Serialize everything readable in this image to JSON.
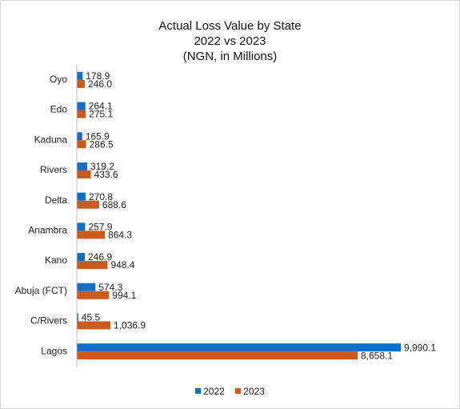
{
  "chart_data": {
    "type": "bar",
    "orientation": "horizontal",
    "title": [
      "Actual Loss Value by State",
      "2022 vs 2023",
      "(NGN, in Millions)"
    ],
    "categories": [
      "Oyo",
      "Edo",
      "Kaduna",
      "Rivers",
      "Delta",
      "Anambra",
      "Kano",
      "Abuja (FCT)",
      "C/Rivers",
      "Lagos"
    ],
    "series": [
      {
        "name": "2022",
        "color": "#0f6fc6",
        "values": [
          178.9,
          264.1,
          165.9,
          319.2,
          270.8,
          257.9,
          246.9,
          574.3,
          45.5,
          9990.1
        ],
        "labels": [
          "178.9",
          "264.1",
          "165.9",
          "319.2",
          "270.8",
          "257.9",
          "246.9",
          "574.3",
          "45.5",
          "9,990.1"
        ]
      },
      {
        "name": "2023",
        "color": "#cc5a1c",
        "values": [
          246.0,
          275.1,
          286.5,
          433.6,
          688.6,
          864.3,
          948.4,
          994.1,
          1036.9,
          8658.1
        ],
        "labels": [
          "246.0",
          "275.1",
          "286.5",
          "433.6",
          "688.6",
          "864.3",
          "948.4",
          "994.1",
          "1,036.9",
          "8,658.1"
        ]
      }
    ],
    "xlim": [
      0,
      9990.1
    ],
    "grid": false,
    "legend_position": "bottom"
  }
}
